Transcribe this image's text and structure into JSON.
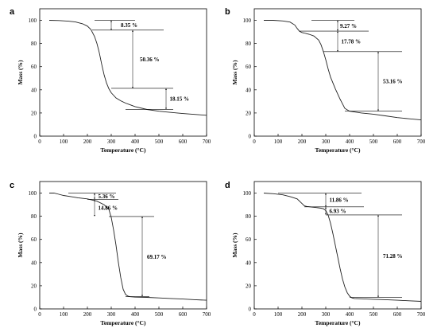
{
  "chart_data": [
    {
      "type": "line",
      "panel": "a",
      "xlabel": "Temperature (°C)",
      "ylabel": "Mass (%)",
      "xlim": [
        0,
        700
      ],
      "ylim": [
        0,
        110
      ],
      "xticks": [
        0,
        100,
        200,
        300,
        400,
        500,
        600,
        700
      ],
      "yticks": [
        0,
        20,
        40,
        60,
        80,
        100
      ],
      "series": [
        {
          "x": [
            40,
            80,
            120,
            150,
            180,
            200,
            215,
            230,
            240,
            250,
            260,
            270,
            280,
            290,
            300,
            320,
            340,
            360,
            380,
            400,
            450,
            500,
            550,
            600,
            650,
            700
          ],
          "y": [
            100,
            99.8,
            99.3,
            98.6,
            97,
            95,
            92,
            86,
            80,
            72,
            62,
            53,
            46,
            41,
            37.5,
            33,
            30.5,
            28.5,
            27,
            25.5,
            23,
            21.5,
            20.5,
            19.5,
            18.8,
            18
          ]
        }
      ],
      "annotations": [
        {
          "label": "8.35 %",
          "y_top": 100,
          "y_bottom": 91.6,
          "x_arrow": 300,
          "x_label": 340,
          "level_lines": [
            {
              "y": 100,
              "x0": 230,
              "x1": 400
            },
            {
              "y": 91.6,
              "x0": 220,
              "x1": 520
            }
          ]
        },
        {
          "label": "50.36 %",
          "y_top": 91.6,
          "y_bottom": 41.3,
          "x_arrow": 390,
          "x_label": 420,
          "level_lines": [
            {
              "y": 41.3,
              "x0": 300,
              "x1": 560
            }
          ]
        },
        {
          "label": "18.15 %",
          "y_top": 41.3,
          "y_bottom": 23.1,
          "x_arrow": 530,
          "x_label": 545,
          "level_lines": [
            {
              "y": 23.1,
              "x0": 360,
              "x1": 560
            }
          ]
        }
      ]
    },
    {
      "type": "line",
      "panel": "b",
      "xlabel": "Temperature (°C)",
      "ylabel": "Mass (%)",
      "xlim": [
        0,
        700
      ],
      "ylim": [
        0,
        110
      ],
      "xticks": [
        0,
        100,
        200,
        300,
        400,
        500,
        600,
        700
      ],
      "yticks": [
        0,
        20,
        40,
        60,
        80,
        100
      ],
      "series": [
        {
          "x": [
            40,
            80,
            120,
            150,
            170,
            180,
            190,
            200,
            210,
            220,
            230,
            250,
            270,
            280,
            290,
            300,
            310,
            320,
            340,
            360,
            380,
            400,
            450,
            500,
            550,
            600,
            650,
            700
          ],
          "y": [
            100,
            100,
            99.5,
            98.5,
            96,
            93,
            90.5,
            89.5,
            89,
            88.5,
            88,
            86.5,
            83,
            79,
            73,
            66,
            58,
            51,
            41,
            32,
            24,
            21.5,
            20,
            19,
            17.5,
            16,
            15,
            14
          ]
        }
      ],
      "annotations": [
        {
          "label": "9.27 %",
          "y_top": 100,
          "y_bottom": 90.7,
          "x_arrow": 350,
          "x_label": 360,
          "level_lines": [
            {
              "y": 100,
              "x0": 240,
              "x1": 420
            },
            {
              "y": 90.7,
              "x0": 190,
              "x1": 480
            }
          ]
        },
        {
          "label": "17.78 %",
          "y_top": 90.7,
          "y_bottom": 73,
          "x_arrow": 350,
          "x_label": 365,
          "level_lines": [
            {
              "y": 73,
              "x0": 290,
              "x1": 620
            }
          ]
        },
        {
          "label": "53.16 %",
          "y_top": 73,
          "y_bottom": 21.6,
          "x_arrow": 520,
          "x_label": 540,
          "level_lines": [
            {
              "y": 21.6,
              "x0": 380,
              "x1": 620
            }
          ]
        }
      ]
    },
    {
      "type": "line",
      "panel": "c",
      "xlabel": "Temperature (°C)",
      "ylabel": "Mass (%)",
      "xlim": [
        0,
        700
      ],
      "ylim": [
        0,
        110
      ],
      "xticks": [
        0,
        100,
        200,
        300,
        400,
        500,
        600,
        700
      ],
      "yticks": [
        0,
        20,
        40,
        60,
        80,
        100
      ],
      "series": [
        {
          "x": [
            40,
            60,
            80,
            100,
            130,
            160,
            200,
            240,
            270,
            290,
            300,
            310,
            320,
            330,
            340,
            350,
            360,
            370,
            380,
            400,
            450,
            500,
            550,
            600,
            650,
            700
          ],
          "y": [
            100,
            100,
            99,
            98,
            97,
            96,
            95,
            93,
            90,
            86,
            79,
            68,
            55,
            40,
            27,
            17,
            12.5,
            11,
            10.5,
            10.2,
            10,
            9.5,
            9,
            8.5,
            8,
            7.5
          ]
        }
      ],
      "annotations": [
        {
          "label": "5.36 %",
          "y_top": 100,
          "y_bottom": 94.6,
          "x_arrow": 230,
          "x_label": 245,
          "level_lines": [
            {
              "y": 100,
              "x0": 120,
              "x1": 320
            },
            {
              "y": 94.6,
              "x0": 200,
              "x1": 330
            }
          ]
        },
        {
          "label": "14.86 %",
          "y_top": 94.6,
          "y_bottom": 79.8,
          "x_arrow": 230,
          "x_label": 245,
          "level_lines": [
            {
              "y": 79.8,
              "x0": 290,
              "x1": 480
            }
          ]
        },
        {
          "label": "69.17 %",
          "y_top": 79.8,
          "y_bottom": 10.6,
          "x_arrow": 430,
          "x_label": 450,
          "level_lines": [
            {
              "y": 10.6,
              "x0": 360,
              "x1": 460
            }
          ]
        }
      ]
    },
    {
      "type": "line",
      "panel": "d",
      "xlabel": "Temperature (°C)",
      "ylabel": "Mass (%)",
      "xlim": [
        0,
        700
      ],
      "ylim": [
        0,
        110
      ],
      "xticks": [
        0,
        100,
        200,
        300,
        400,
        500,
        600,
        700
      ],
      "yticks": [
        0,
        20,
        40,
        60,
        80,
        100
      ],
      "series": [
        {
          "x": [
            40,
            80,
            120,
            150,
            180,
            200,
            210,
            220,
            240,
            260,
            280,
            290,
            300,
            310,
            320,
            330,
            340,
            350,
            360,
            370,
            380,
            390,
            400,
            410,
            420,
            450,
            500,
            550,
            600,
            650,
            700
          ],
          "y": [
            100,
            99.5,
            98.5,
            97,
            95,
            91,
            89,
            88.5,
            88,
            87.5,
            87,
            86.5,
            85,
            81,
            74,
            65,
            55,
            45,
            35,
            26,
            19,
            14,
            11,
            9.5,
            9,
            8.7,
            8.3,
            8,
            7.5,
            7,
            6.5
          ]
        }
      ],
      "annotations": [
        {
          "label": "11.86 %",
          "y_top": 100,
          "y_bottom": 88.1,
          "x_arrow": 300,
          "x_label": 315,
          "level_lines": [
            {
              "y": 100,
              "x0": 100,
              "x1": 450
            },
            {
              "y": 88.1,
              "x0": 210,
              "x1": 460
            }
          ]
        },
        {
          "label": "6.93 %",
          "y_top": 88.1,
          "y_bottom": 81.2,
          "x_arrow": 300,
          "x_label": 315,
          "level_lines": [
            {
              "y": 81.2,
              "x0": 300,
              "x1": 620
            }
          ]
        },
        {
          "label": "71.28 %",
          "y_top": 81.2,
          "y_bottom": 9.9,
          "x_arrow": 520,
          "x_label": 540,
          "level_lines": [
            {
              "y": 9.9,
              "x0": 400,
              "x1": 620
            }
          ]
        }
      ]
    }
  ]
}
